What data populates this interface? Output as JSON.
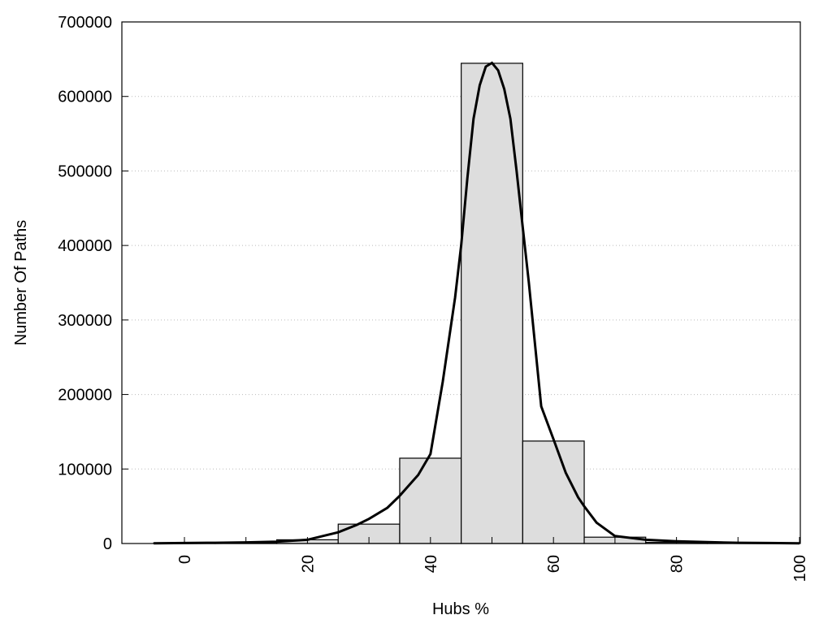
{
  "chart_data": {
    "type": "bar",
    "title": "",
    "xlabel": "Hubs %",
    "ylabel": "Number Of Paths",
    "xlim": [
      -10,
      100
    ],
    "ylim": [
      0,
      700000
    ],
    "grid": "horizontal dotted",
    "bar_color": "#dddddd",
    "line_color": "#000000",
    "x_ticks": [
      0,
      20,
      40,
      60,
      80,
      100
    ],
    "x_minor_ticks": [
      10,
      30,
      50,
      70,
      90
    ],
    "y_ticks": [
      0,
      100000,
      200000,
      300000,
      400000,
      500000,
      600000,
      700000
    ],
    "bin_width": 10,
    "bars": {
      "x": [
        0,
        10,
        20,
        30,
        40,
        50,
        60,
        70,
        80,
        90
      ],
      "values": [
        800,
        1500,
        5000,
        26000,
        114500,
        644500,
        137500,
        8500,
        1500,
        500
      ]
    },
    "fit_curve": {
      "x": [
        -5,
        0,
        5,
        10,
        15,
        20,
        25,
        28,
        30,
        33,
        35,
        38,
        40,
        42,
        44,
        45,
        46,
        47,
        48,
        49,
        50,
        51,
        52,
        53,
        54,
        55,
        56,
        58,
        60,
        62,
        64,
        65,
        67,
        70,
        75,
        80,
        85,
        90,
        95,
        100
      ],
      "y": [
        300,
        600,
        1000,
        1500,
        2500,
        5000,
        15000,
        25000,
        33000,
        48000,
        64000,
        92000,
        120000,
        217000,
        330000,
        400000,
        490000,
        570000,
        615000,
        640000,
        645000,
        635000,
        610000,
        570000,
        500000,
        424000,
        350000,
        184000,
        140000,
        95000,
        62000,
        50000,
        28000,
        10000,
        5000,
        3000,
        1800,
        1000,
        600,
        300
      ]
    }
  }
}
